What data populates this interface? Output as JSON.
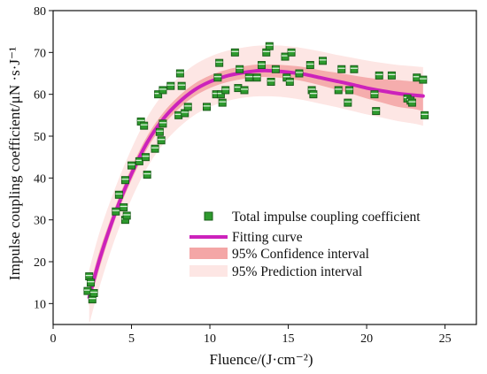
{
  "chart_data": {
    "type": "scatter",
    "xlabel": "Fluence/(J·cm⁻²)",
    "ylabel": "Impulse coupling coefficient/μN ·s·J⁻¹",
    "xlim": [
      0,
      27
    ],
    "ylim": [
      5,
      80
    ],
    "x_ticks": [
      0,
      5,
      10,
      15,
      20,
      25
    ],
    "y_ticks": [
      10,
      20,
      30,
      40,
      50,
      60,
      70,
      80
    ],
    "grid": false,
    "legend_position": "center-right",
    "colors": {
      "points_fill": "#2e9a2e",
      "points_edge": "#1a5e1a",
      "fit": "#cc22bb",
      "confidence": "#f4a6a6",
      "prediction": "#fde6e4"
    },
    "series": [
      {
        "name": "Total impulse coupling coefficient",
        "kind": "scatter",
        "points": [
          [
            2.2,
            13
          ],
          [
            2.3,
            16.5
          ],
          [
            2.4,
            15
          ],
          [
            2.5,
            11
          ],
          [
            2.6,
            12.5
          ],
          [
            4.0,
            32
          ],
          [
            4.2,
            36
          ],
          [
            4.5,
            33
          ],
          [
            4.6,
            30
          ],
          [
            4.7,
            31
          ],
          [
            4.6,
            39.5
          ],
          [
            5.0,
            43
          ],
          [
            5.5,
            44
          ],
          [
            5.6,
            53.5
          ],
          [
            5.8,
            52.5
          ],
          [
            5.9,
            45
          ],
          [
            6.0,
            40.8
          ],
          [
            6.5,
            47
          ],
          [
            6.7,
            60
          ],
          [
            6.8,
            51
          ],
          [
            6.9,
            49
          ],
          [
            7.0,
            53
          ],
          [
            7.0,
            61
          ],
          [
            7.5,
            62
          ],
          [
            8.0,
            55
          ],
          [
            8.1,
            65
          ],
          [
            8.2,
            62
          ],
          [
            8.4,
            55.5
          ],
          [
            8.6,
            57
          ],
          [
            9.8,
            57
          ],
          [
            10.4,
            60
          ],
          [
            10.5,
            64
          ],
          [
            10.6,
            67.5
          ],
          [
            10.7,
            60
          ],
          [
            10.8,
            58
          ],
          [
            11.0,
            61
          ],
          [
            11.6,
            70
          ],
          [
            11.8,
            61.5
          ],
          [
            11.9,
            66
          ],
          [
            12.2,
            61
          ],
          [
            12.5,
            64
          ],
          [
            13.0,
            64
          ],
          [
            13.3,
            67
          ],
          [
            13.6,
            70
          ],
          [
            13.8,
            71.5
          ],
          [
            13.9,
            63
          ],
          [
            14.2,
            66
          ],
          [
            14.8,
            69
          ],
          [
            14.9,
            64
          ],
          [
            15.1,
            63
          ],
          [
            15.2,
            70
          ],
          [
            15.7,
            65
          ],
          [
            16.4,
            67
          ],
          [
            16.5,
            61
          ],
          [
            16.6,
            60
          ],
          [
            17.2,
            68
          ],
          [
            18.2,
            61
          ],
          [
            18.4,
            66
          ],
          [
            18.8,
            58
          ],
          [
            18.9,
            61
          ],
          [
            19.2,
            66
          ],
          [
            20.5,
            60
          ],
          [
            20.6,
            56
          ],
          [
            20.8,
            64.5
          ],
          [
            21.6,
            64.5
          ],
          [
            22.6,
            59
          ],
          [
            22.8,
            58.5
          ],
          [
            22.9,
            58
          ],
          [
            23.2,
            64
          ],
          [
            23.6,
            63.5
          ],
          [
            23.7,
            55
          ]
        ]
      },
      {
        "name": "Fitting curve",
        "kind": "line",
        "x": [
          2.3,
          3,
          4,
          5,
          6,
          7,
          8,
          9,
          10,
          11,
          12,
          13,
          13.5,
          14,
          15,
          16,
          17,
          18,
          19,
          20,
          21,
          22,
          23,
          23.6
        ],
        "y": [
          11.5,
          21,
          32,
          41,
          48.5,
          54,
          58,
          61,
          63,
          64.3,
          65.1,
          65.6,
          65.7,
          65.6,
          65.3,
          64.8,
          64,
          63.2,
          62.4,
          61.5,
          60.8,
          60.2,
          59.8,
          59.6
        ]
      },
      {
        "name": "95% Confidence interval",
        "kind": "band",
        "x": [
          2.3,
          3,
          4,
          5,
          6,
          7,
          8,
          9,
          10,
          11,
          12,
          13,
          14,
          15,
          16,
          17,
          18,
          19,
          20,
          21,
          22,
          23,
          23.6
        ],
        "lower": [
          9.5,
          19,
          30.5,
          39.5,
          47,
          52.5,
          56.5,
          59.5,
          61.5,
          62.8,
          63.6,
          64.1,
          64.1,
          63.7,
          63.1,
          62.2,
          61.2,
          60.2,
          59,
          58,
          57,
          56.5,
          56
        ],
        "upper": [
          13.5,
          23,
          33.5,
          42.5,
          50,
          55.5,
          59.5,
          62.5,
          64.5,
          65.8,
          66.6,
          67.1,
          67.1,
          66.9,
          66.5,
          65.8,
          65.2,
          64.6,
          64,
          63.6,
          63.4,
          63.1,
          63.2
        ]
      },
      {
        "name": "95% Prediction interval",
        "kind": "band",
        "x": [
          2.3,
          3,
          4,
          5,
          6,
          7,
          8,
          9,
          10,
          11,
          12,
          13,
          14,
          15,
          16,
          17,
          18,
          19,
          20,
          21,
          22,
          23,
          23.6
        ],
        "lower": [
          5,
          14.5,
          26,
          35,
          42.5,
          48,
          52,
          55,
          57,
          58.3,
          59.1,
          59.5,
          59.5,
          59.2,
          58.6,
          57.8,
          57,
          56.1,
          55.2,
          54.4,
          53.6,
          53,
          52.5
        ],
        "upper": [
          18,
          27.5,
          38,
          47,
          54.5,
          60,
          64,
          67,
          69,
          70.3,
          71.1,
          71.6,
          71.7,
          71.5,
          71,
          70.3,
          69.5,
          68.8,
          68.1,
          67.5,
          67,
          66.7,
          66.5
        ]
      }
    ]
  }
}
